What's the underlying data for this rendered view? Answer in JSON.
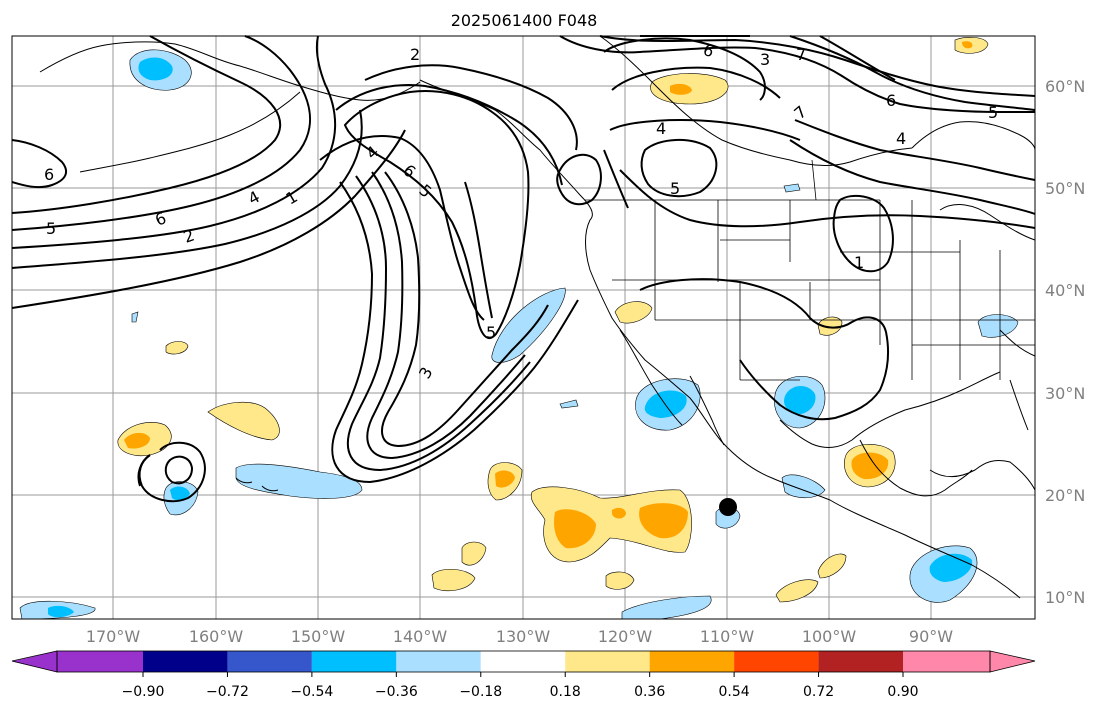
{
  "title": "2025061400 F048",
  "map": {
    "lat_labels": [
      "60°N",
      "50°N",
      "40°N",
      "30°N",
      "20°N",
      "10°N"
    ],
    "lon_labels": [
      "170°W",
      "160°W",
      "150°W",
      "140°W",
      "130°W",
      "120°W",
      "110°W",
      "100°W",
      "90°W"
    ],
    "contour_labels": [
      "1",
      "2",
      "2",
      "3",
      "3",
      "4",
      "4",
      "4",
      "4",
      "5",
      "5",
      "5",
      "5",
      "5",
      "6",
      "6",
      "6",
      "6",
      "6",
      "7",
      "7",
      "1"
    ],
    "marker": "filled-black-circle"
  },
  "colorbar": {
    "ticks": [
      "−0.90",
      "−0.72",
      "−0.54",
      "−0.36",
      "−0.18",
      "0.18",
      "0.36",
      "0.54",
      "0.72",
      "0.90"
    ],
    "colors": [
      "#9932cc",
      "#00008b",
      "#3657cc",
      "#00bfff",
      "#abdfff",
      "#ffffff",
      "#ffe88a",
      "#ffa500",
      "#ff4500",
      "#b22222",
      "#ff88aa"
    ]
  }
}
